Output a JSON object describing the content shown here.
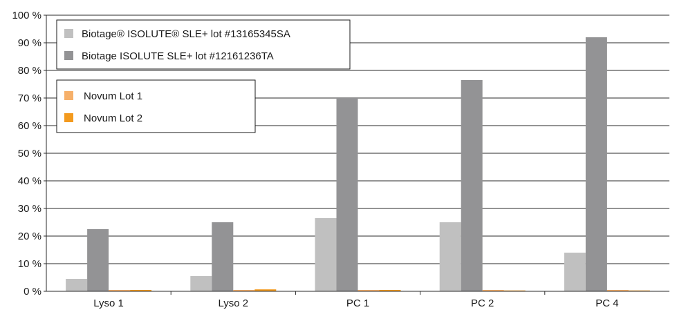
{
  "chart_data": {
    "type": "bar",
    "categories": [
      "Lyso 1",
      "Lyso 2",
      "PC 1",
      "PC 2",
      "PC 4"
    ],
    "series": [
      {
        "name": "Biotage® ISOLUTE® SLE+ lot #13165345SA",
        "color": "#c0c0c0",
        "values": [
          4.5,
          5.5,
          26.5,
          25.0,
          14.0
        ]
      },
      {
        "name": "Biotage ISOLUTE SLE+ lot #12161236TA",
        "color": "#939395",
        "values": [
          22.5,
          25.0,
          70.0,
          76.5,
          92.0
        ]
      },
      {
        "name": "Novum Lot 1",
        "color": "#f6b06a",
        "values": [
          0.5,
          0.5,
          0.5,
          0.5,
          0.5
        ]
      },
      {
        "name": "Novum Lot 2",
        "color": "#f39a1e",
        "values": [
          0.5,
          0.7,
          0.5,
          0.3,
          0.3
        ]
      }
    ],
    "yticks": [
      "0 %",
      "10 %",
      "20 %",
      "30 %",
      "40 %",
      "50 %",
      "60 %",
      "70 %",
      "80 %",
      "90 %",
      "100 %"
    ],
    "ylim": [
      0,
      100
    ],
    "grid": true,
    "legends": [
      {
        "position": "top-left",
        "entries": [
          "Biotage® ISOLUTE® SLE+ lot #13165345SA",
          "Biotage ISOLUTE SLE+ lot #12161236TA"
        ]
      },
      {
        "position": "upper-left",
        "entries": [
          "Novum Lot 1",
          "Novum Lot 2"
        ]
      }
    ]
  }
}
